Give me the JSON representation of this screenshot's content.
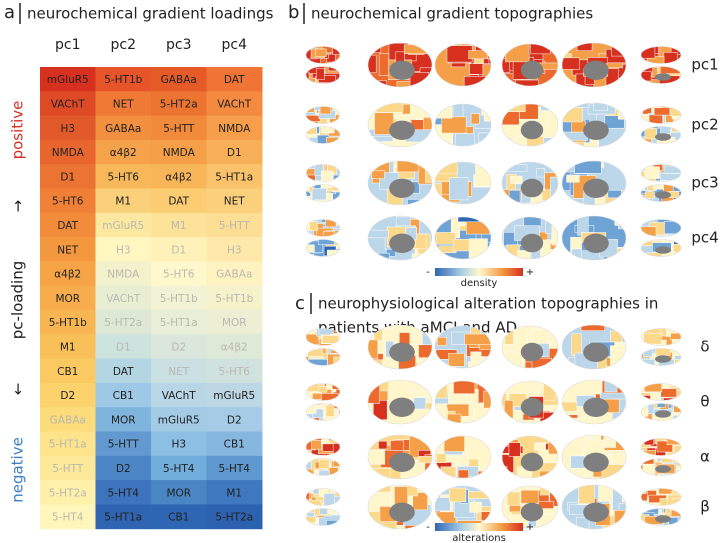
{
  "panel_a": {
    "label": "a",
    "title": "neurochemical gradient loadings",
    "columns": [
      {
        "name": "pc1",
        "cells": [
          "mGluR5",
          "VAChT",
          "H3",
          "NMDA",
          "D1",
          "5-HT6",
          "DAT",
          "NET",
          "α4β2",
          "MOR",
          "5-HT1b",
          "M1",
          "CB1",
          "D2",
          "GABAa",
          "5-HT1a",
          "5-HTT",
          "5-HT2a",
          "5-HT4"
        ],
        "colors": [
          "#d7301f",
          "#de4a26",
          "#e35a2a",
          "#e8662e",
          "#ec7432",
          "#ef8036",
          "#f28c3b",
          "#f49840",
          "#f6a446",
          "#f7ad4c",
          "#f8b652",
          "#f9c05a",
          "#fac962",
          "#fbd26c",
          "#fcdb7a",
          "#fde38a",
          "#fee99a",
          "#fff0aa",
          "#fff6bb"
        ]
      },
      {
        "name": "pc2",
        "cells": [
          "5-HT1b",
          "NET",
          "GABAa",
          "α4β2",
          "5-HT6",
          "M1",
          "mGluR5",
          "H3",
          "NMDA",
          "VAChT",
          "5-HT2a",
          "D1",
          "DAT",
          "CB1",
          "MOR",
          "5-HTT",
          "D2",
          "5-HT4",
          "5-HT1a"
        ],
        "colors": [
          "#e8542a",
          "#ef7a35",
          "#f29040",
          "#f5a24a",
          "#f8b85a",
          "#fbd07a",
          "#fde8a0",
          "#fff6c0",
          "#f4f2cc",
          "#e8eed2",
          "#dde9d6",
          "#cde3de",
          "#b4d6e3",
          "#9dc9e6",
          "#7fb4dd",
          "#6199d0",
          "#4d86c6",
          "#3d74bd",
          "#2f64b2"
        ]
      },
      {
        "name": "pc3",
        "cells": [
          "GABAa",
          "5-HT2a",
          "5-HTT",
          "NMDA",
          "α4β2",
          "DAT",
          "M1",
          "D1",
          "5-HT6",
          "5-HT1b",
          "5-HT1a",
          "D2",
          "NET",
          "VAChT",
          "mGluR5",
          "H3",
          "5-HT4",
          "MOR",
          "CB1"
        ],
        "colors": [
          "#e65a27",
          "#ec7431",
          "#f18a3b",
          "#f5a048",
          "#f8b658",
          "#fbcc72",
          "#fde29a",
          "#fff2b8",
          "#fff8cc",
          "#f2f2d4",
          "#e8eed8",
          "#dbe7dc",
          "#cbe0e2",
          "#b8d6e6",
          "#a3cbe6",
          "#8cbfe3",
          "#72aedb",
          "#4a85c4",
          "#2f66b3"
        ]
      },
      {
        "name": "pc4",
        "cells": [
          "DAT",
          "VAChT",
          "NMDA",
          "D1",
          "5-HT1a",
          "NET",
          "5-HTT",
          "H3",
          "GABAa",
          "5-HT1b",
          "MOR",
          "α4β2",
          "5-HT6",
          "mGluR5",
          "D2",
          "CB1",
          "5-HT4",
          "M1",
          "5-HT2a"
        ],
        "colors": [
          "#ef7436",
          "#f38a3f",
          "#f69e4a",
          "#f8b058",
          "#fac26a",
          "#fbd07c",
          "#fcde94",
          "#fee9aa",
          "#fef2c0",
          "#f6f2cc",
          "#ecefd3",
          "#dfe9d8",
          "#d0e2de",
          "#bdd8e4",
          "#a6cbe6",
          "#86b7df",
          "#5f98cf",
          "#3f78be",
          "#2c61b0"
        ]
      }
    ],
    "side_labels": {
      "positive": "positive",
      "up": "↑",
      "middle": "pc-loading",
      "down": "↓",
      "negative": "negative"
    }
  },
  "panel_b": {
    "label": "b",
    "title": "neurochemical gradient topographies",
    "rows": [
      "pc1",
      "pc2",
      "pc3",
      "pc4"
    ],
    "colorbar": {
      "min": "-",
      "max": "+",
      "label": "density"
    }
  },
  "panel_c": {
    "label": "c",
    "title_lines": [
      "neurophysiological alteration topographies in",
      "patients with aMCI and AD"
    ],
    "rows": [
      "δ",
      "θ",
      "α",
      "β"
    ],
    "colorbar": {
      "min": "-",
      "max": "+",
      "label": "alterations"
    }
  }
}
